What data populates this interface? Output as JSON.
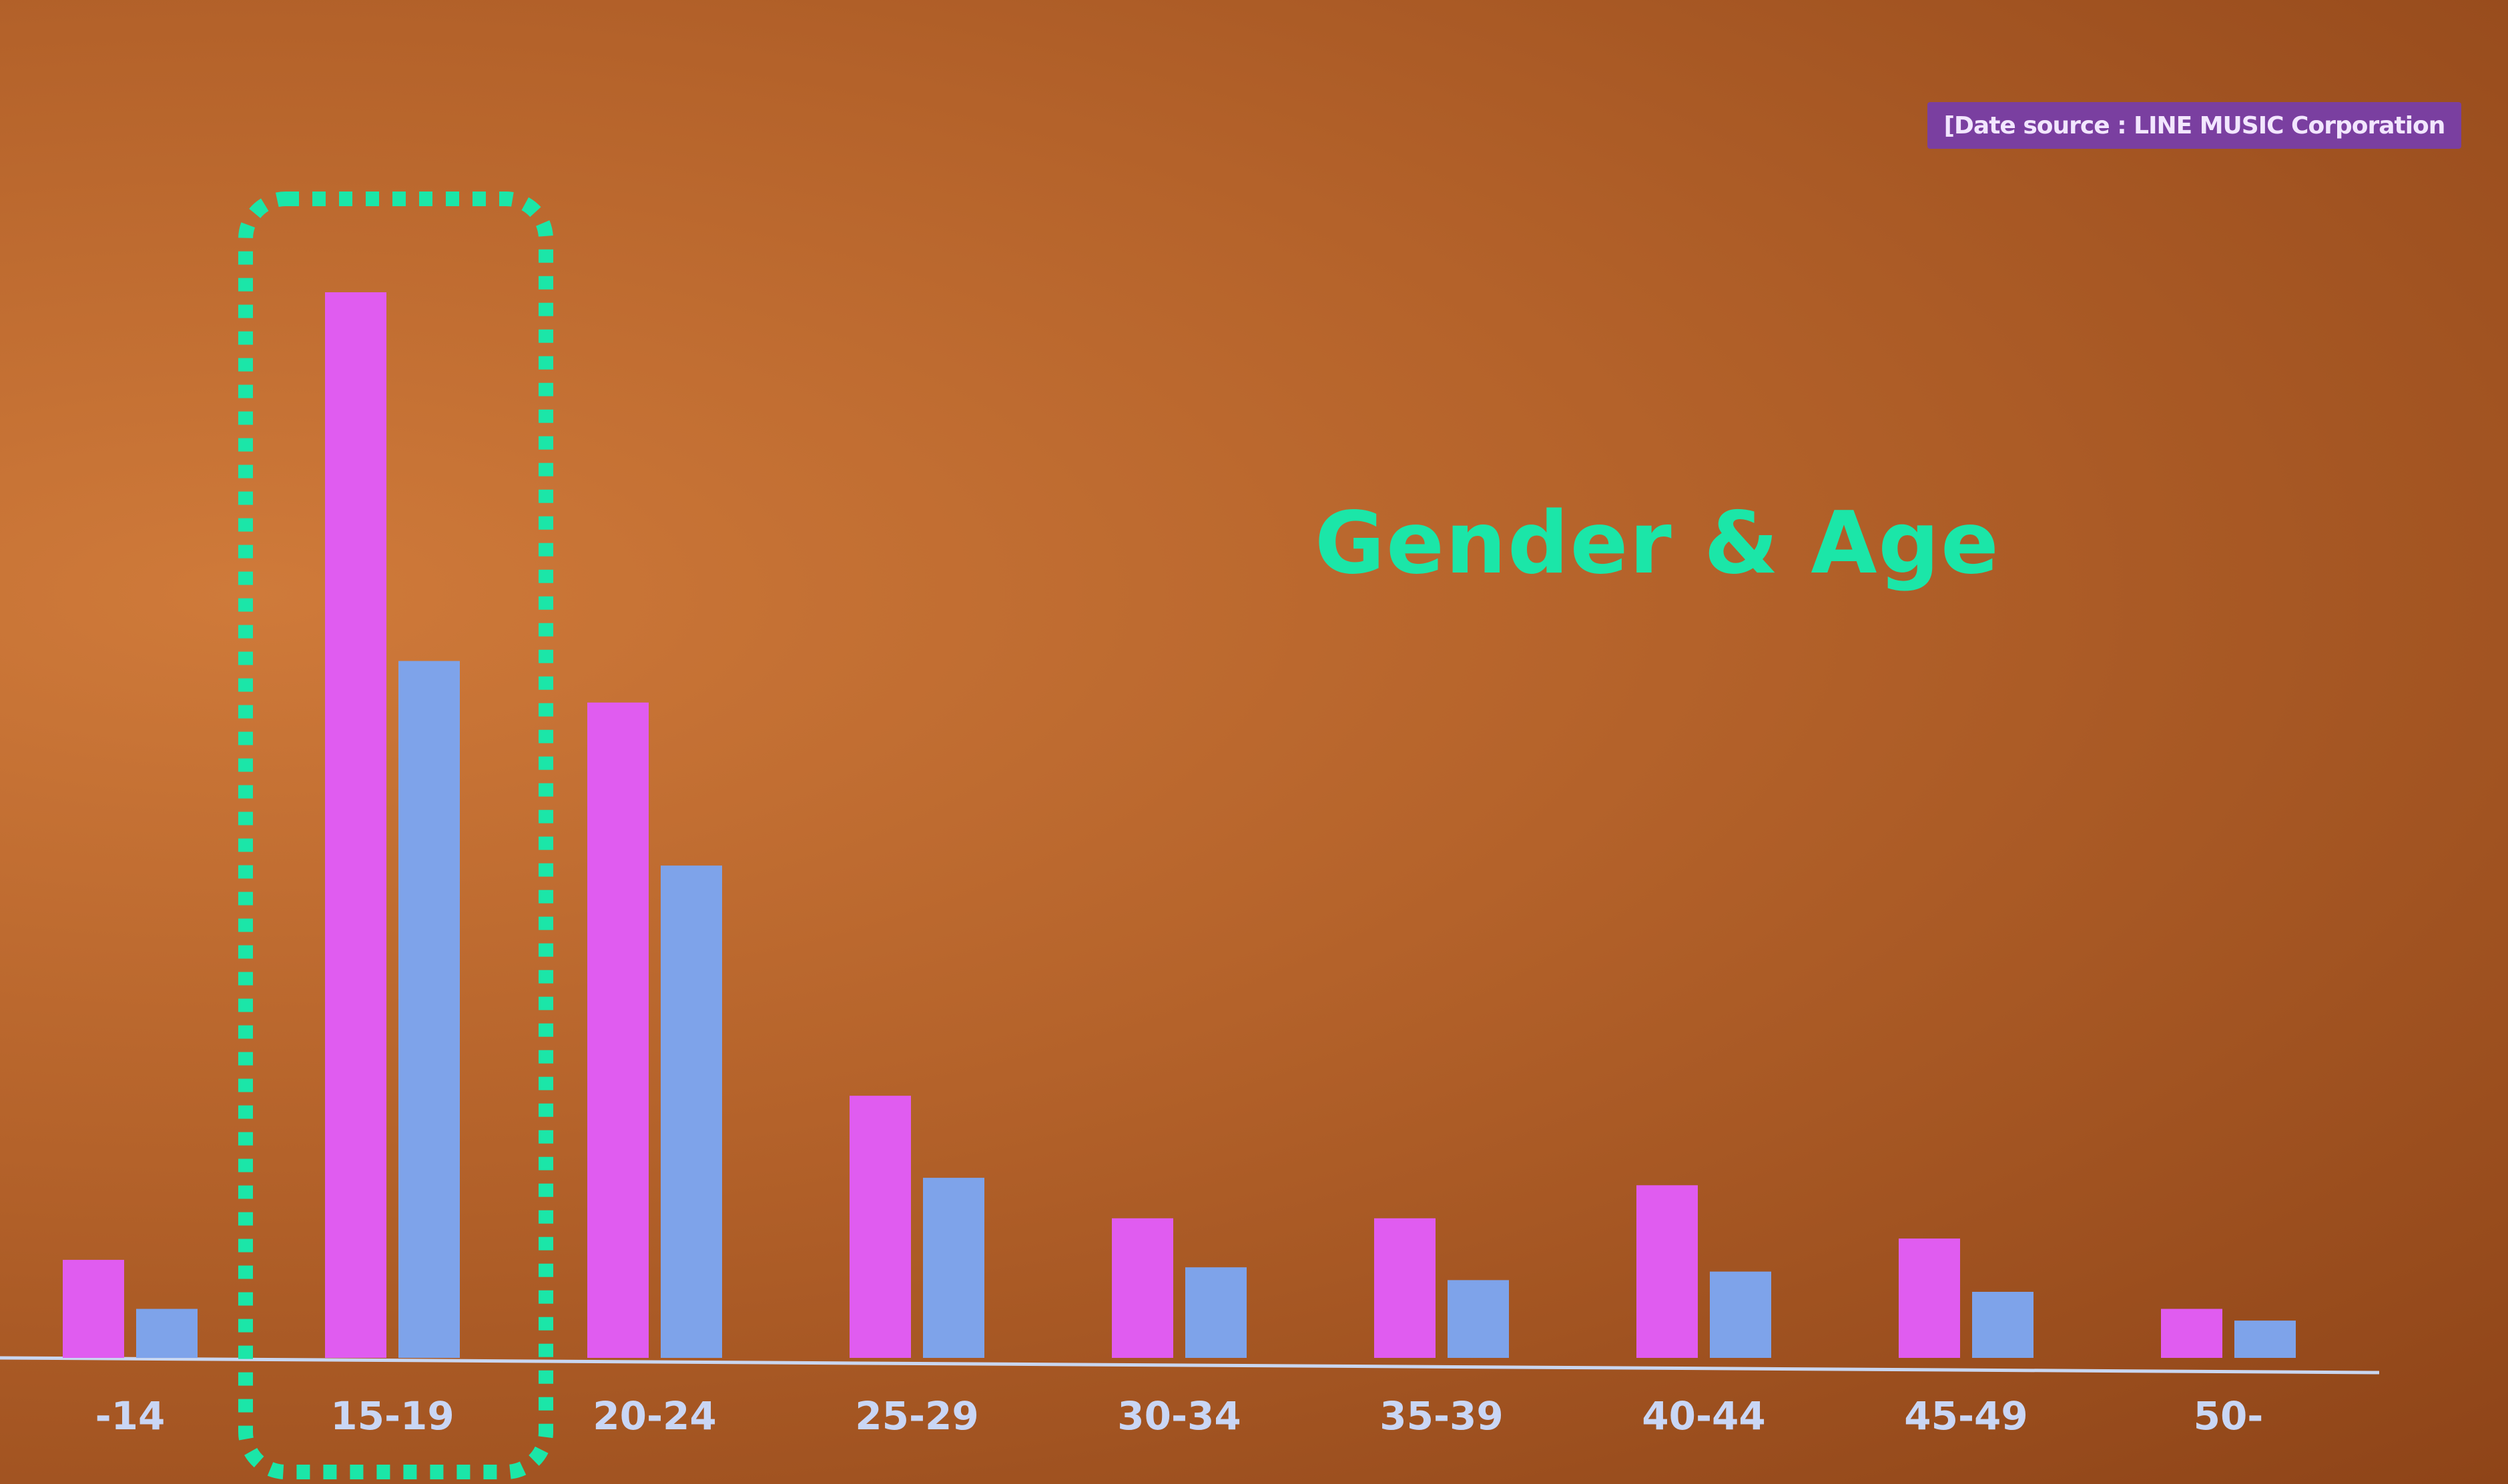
{
  "source_note": "[Date source : LINE MUSIC Corporation",
  "colors": {
    "series_a": "#e05cf0",
    "series_b": "#7ea3ea",
    "highlight": "#1be6a8",
    "axis": "#c9d6f0",
    "label": "#c9d6f5"
  },
  "chart_data": {
    "type": "bar",
    "title": "Gender & Age",
    "xlabel": "",
    "ylabel": "",
    "categories": [
      "-14",
      "15-19",
      "20-24",
      "25-29",
      "30-34",
      "35-39",
      "40-44",
      "45-49",
      "50-"
    ],
    "series": [
      {
        "values": [
          9.2,
          100,
          61.5,
          24.6,
          13.1,
          13.1,
          16.2,
          11.2,
          4.6
        ]
      },
      {
        "values": [
          4.6,
          65.4,
          46.2,
          16.9,
          8.5,
          7.3,
          8.1,
          6.2,
          3.5
        ]
      }
    ],
    "ylim": [
      0,
      100
    ],
    "highlight_category": "15-19",
    "grid": false,
    "legend": "none"
  }
}
